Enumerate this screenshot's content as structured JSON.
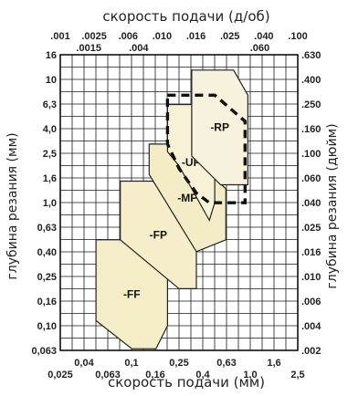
{
  "chart_data": {
    "type": "area",
    "top_title": "скорость подачи (д/об)",
    "bottom_title": "скорость подачи (мм)",
    "left_title": "глубина резания (мм)",
    "right_title": "глубина резания (дюйм)",
    "x_range_mm": [
      0.025,
      2.5
    ],
    "y_range_mm": [
      0.063,
      16
    ],
    "x_scale": "log",
    "y_scale": "log",
    "grid": true,
    "top_ticks_row1": [
      ".001",
      ".0025",
      ".006",
      ".010",
      ".016",
      ".025",
      ".040",
      ".100"
    ],
    "top_ticks_row2": [
      ".0015",
      ".004",
      ".060"
    ],
    "bottom_ticks_row1": [
      "0,04",
      "0,1",
      "0,25",
      "0,63",
      "1,6"
    ],
    "bottom_ticks_row2": [
      "0,025",
      "0,063",
      "0,16",
      "0,4",
      "1,0",
      "2,5"
    ],
    "left_ticks": [
      "16",
      "10",
      "6,3",
      "4,0",
      "2,5",
      "1,6",
      "1,0",
      "0,63",
      "0,40",
      "0,25",
      "0,16",
      "0,10",
      "0,063"
    ],
    "right_ticks": [
      ".630",
      ".400",
      ".250",
      ".160",
      ".100",
      ".060",
      ".040",
      ".025",
      ".016",
      ".010",
      ".006",
      ".004",
      ".002"
    ],
    "regions": [
      {
        "name": "-FF",
        "color": "#f4edc8",
        "polygon_mm": [
          [
            0.05,
            0.5
          ],
          [
            0.1,
            0.5
          ],
          [
            0.2,
            0.25
          ],
          [
            0.2,
            0.1
          ],
          [
            0.16,
            0.065
          ],
          [
            0.1,
            0.065
          ],
          [
            0.05,
            0.11
          ]
        ]
      },
      {
        "name": "-FP",
        "color": "#f6eecb",
        "polygon_mm": [
          [
            0.08,
            1.5
          ],
          [
            0.15,
            1.5
          ],
          [
            0.35,
            0.8
          ],
          [
            0.35,
            0.2
          ],
          [
            0.25,
            0.2
          ],
          [
            0.08,
            0.5
          ]
        ]
      },
      {
        "name": "-MP",
        "color": "#f4ecc6",
        "polygon_mm": [
          [
            0.14,
            3.0
          ],
          [
            0.25,
            3.0
          ],
          [
            0.62,
            1.3
          ],
          [
            0.62,
            0.5
          ],
          [
            0.35,
            0.4
          ],
          [
            0.14,
            1.7
          ]
        ]
      },
      {
        "name": "-UP",
        "color": "#f7f1d6",
        "polygon_mm": [
          [
            0.2,
            6.3
          ],
          [
            0.4,
            6.3
          ],
          [
            0.5,
            2.5
          ],
          [
            0.5,
            1.0
          ],
          [
            0.45,
            0.72
          ],
          [
            0.25,
            2.0
          ],
          [
            0.2,
            2.6
          ]
        ]
      },
      {
        "name": "-RP",
        "color": "#f7f2dd",
        "polygon_mm": [
          [
            0.32,
            12.0
          ],
          [
            0.72,
            12.0
          ],
          [
            0.95,
            7.5
          ],
          [
            0.95,
            1.4
          ],
          [
            0.56,
            1.4
          ],
          [
            0.32,
            2.4
          ]
        ]
      }
    ],
    "dashed_outline_mm": [
      [
        0.2,
        7.5
      ],
      [
        0.5,
        7.5
      ],
      [
        0.9,
        4.6
      ],
      [
        0.9,
        1.0
      ],
      [
        0.8,
        1.0
      ],
      [
        0.45,
        1.0
      ],
      [
        0.35,
        1.2
      ],
      [
        0.25,
        1.9
      ],
      [
        0.2,
        3.0
      ]
    ]
  }
}
